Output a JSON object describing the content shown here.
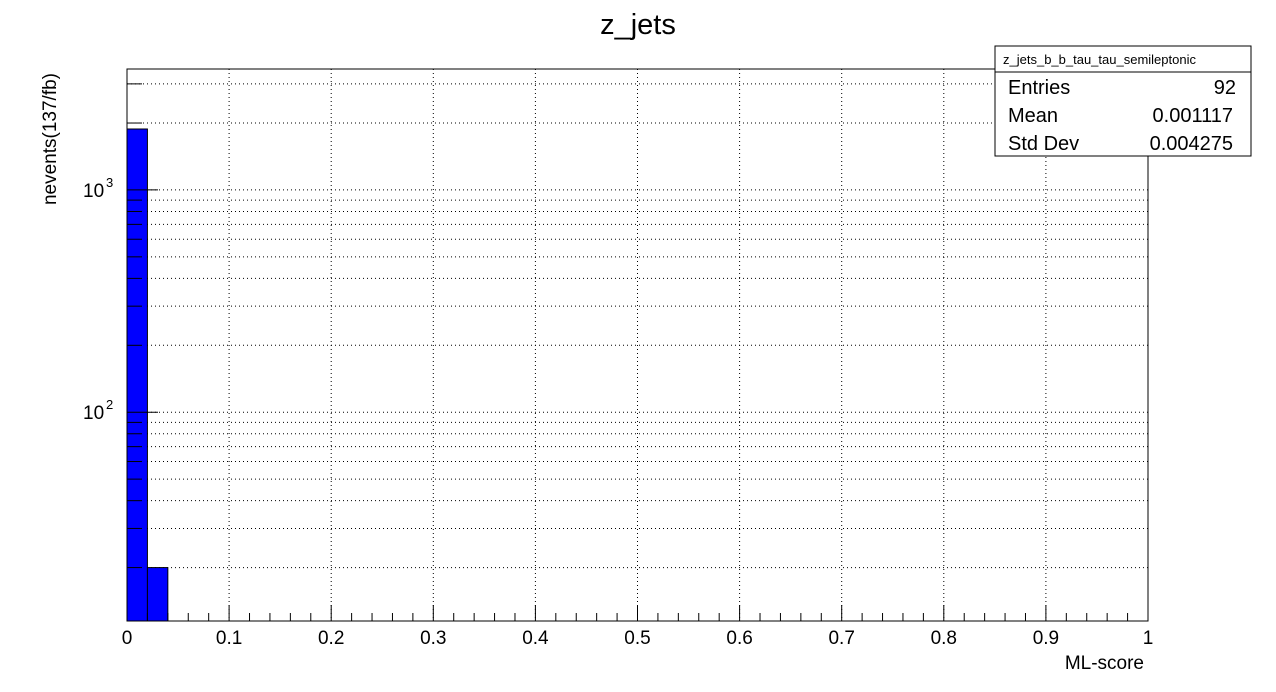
{
  "chart_data": {
    "type": "bar",
    "title": "z_jets",
    "xlabel": "ML-score",
    "ylabel": "nevents(137/fb)",
    "xlim": [
      0,
      1
    ],
    "ylim": [
      11.5,
      3500
    ],
    "log_y": true,
    "grid": true,
    "bin_width": 0.02,
    "bins": [
      {
        "x_low": 0.0,
        "x_high": 0.02,
        "value": 1880
      },
      {
        "x_low": 0.02,
        "x_high": 0.04,
        "value": 20
      }
    ],
    "x_ticks": [
      {
        "value": 0,
        "label": "0"
      },
      {
        "value": 0.1,
        "label": "0.1"
      },
      {
        "value": 0.2,
        "label": "0.2"
      },
      {
        "value": 0.3,
        "label": "0.3"
      },
      {
        "value": 0.4,
        "label": "0.4"
      },
      {
        "value": 0.5,
        "label": "0.5"
      },
      {
        "value": 0.6,
        "label": "0.6"
      },
      {
        "value": 0.7,
        "label": "0.7"
      },
      {
        "value": 0.8,
        "label": "0.8"
      },
      {
        "value": 0.9,
        "label": "0.9"
      },
      {
        "value": 1,
        "label": "1"
      }
    ],
    "y_ticks": [
      {
        "value": 100,
        "base": "10",
        "exp": "2"
      },
      {
        "value": 1000,
        "base": "10",
        "exp": "3"
      }
    ],
    "bar_color": "#0000ff",
    "stats_box": {
      "name": "z_jets_b_b_tau_tau_semileptonic",
      "placement": "top-right",
      "rows": [
        {
          "label": "Entries",
          "value": "92"
        },
        {
          "label": "Mean",
          "value": "0.001117"
        },
        {
          "label": "Std Dev",
          "value": "0.004275"
        }
      ]
    }
  }
}
